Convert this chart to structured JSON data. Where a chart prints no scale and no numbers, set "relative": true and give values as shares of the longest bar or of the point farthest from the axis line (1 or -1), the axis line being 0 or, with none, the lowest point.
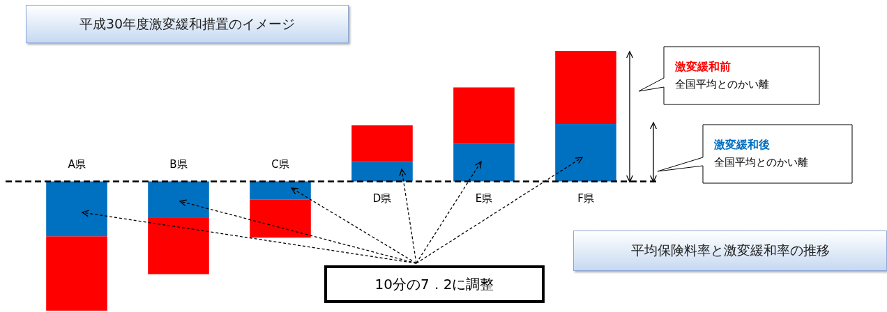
{
  "chart_data": {
    "type": "bar",
    "title": "平成30年度激変緩和措置のイメージ",
    "relative": true,
    "stacked": true,
    "categories": [
      "A県",
      "B県",
      "C県",
      "D県",
      "E県",
      "F県"
    ],
    "series": [
      {
        "color": "#0070c0",
        "values": [
          -0.42,
          -0.28,
          -0.14,
          0.15,
          0.29,
          0.44
        ]
      },
      {
        "color": "#ff0000",
        "values": [
          -0.57,
          -0.43,
          -0.29,
          0.28,
          0.43,
          0.56
        ]
      }
    ],
    "ref_lines": [
      {
        "axis": "y",
        "value": 0,
        "color": "#000000",
        "line_style": "dashed"
      }
    ],
    "annotations": [
      "激変緩和前",
      "全国平均とのかい離",
      "激変緩和後",
      "全国平均とのかい離",
      "平均保険料率と激変緩和率の推移",
      "10分の7．2に調整"
    ],
    "legend": false
  }
}
